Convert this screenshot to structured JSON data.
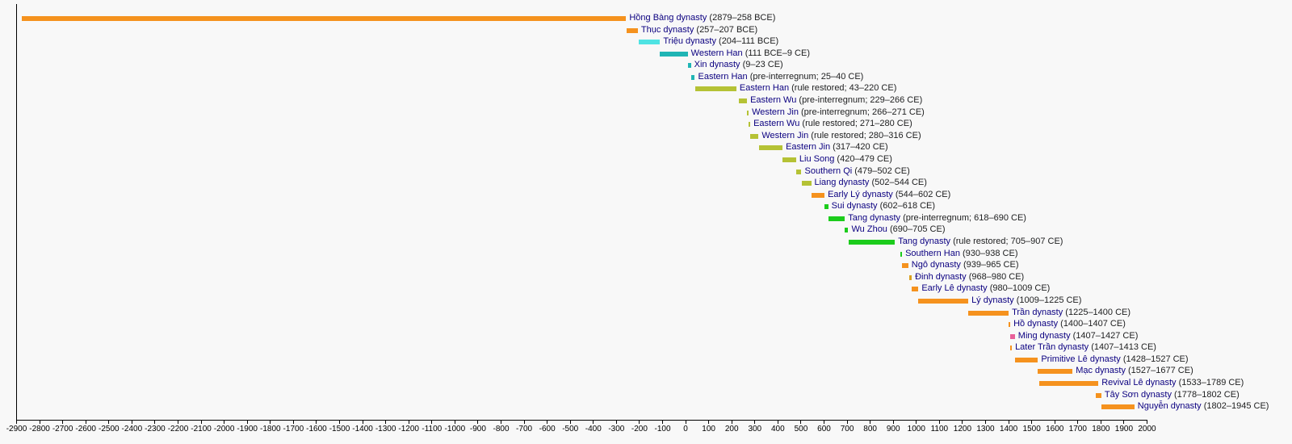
{
  "chart_data": {
    "type": "timeline",
    "xlim": [
      -2900,
      2000
    ],
    "x_tick_step": 100,
    "grid": false,
    "colors": {
      "vietnamese": "#f5921e",
      "trieu": "#4fe3e3",
      "han_xin": "#1fb5b5",
      "southern_chinese": "#b5c235",
      "sui_tang": "#1ccc1c",
      "ming": "#e8609a",
      "dinh": "#d9a020"
    },
    "dynasties": [
      {
        "name": "Hồng Bàng dynasty",
        "detail": "(2879–258 BCE)",
        "start": -2879,
        "end": -258,
        "color": "vietnamese"
      },
      {
        "name": "Thục dynasty",
        "detail": "(257–207 BCE)",
        "start": -257,
        "end": -207,
        "color": "vietnamese"
      },
      {
        "name": "Triệu dynasty",
        "detail": "(204–111 BCE)",
        "start": -204,
        "end": -111,
        "color": "trieu"
      },
      {
        "name": "Western Han",
        "detail": "(111 BCE–9 CE)",
        "start": -111,
        "end": 9,
        "color": "han_xin"
      },
      {
        "name": "Xin dynasty",
        "detail": "(9–23 CE)",
        "start": 9,
        "end": 23,
        "color": "han_xin"
      },
      {
        "name": "Eastern Han",
        "detail": "(pre-interregnum; 25–40 CE)",
        "start": 25,
        "end": 40,
        "color": "han_xin"
      },
      {
        "name": "Eastern Han",
        "detail": "(rule restored; 43–220 CE)",
        "start": 43,
        "end": 220,
        "color": "southern_chinese"
      },
      {
        "name": "Eastern Wu",
        "detail": "(pre-interregnum; 229–266 CE)",
        "start": 229,
        "end": 266,
        "color": "southern_chinese"
      },
      {
        "name": "Western Jin",
        "detail": "(pre-interregnum; 266–271 CE)",
        "start": 266,
        "end": 271,
        "color": "southern_chinese"
      },
      {
        "name": "Eastern Wu",
        "detail": "(rule restored; 271–280 CE)",
        "start": 271,
        "end": 280,
        "color": "southern_chinese"
      },
      {
        "name": "Western Jin",
        "detail": "(rule restored; 280–316 CE)",
        "start": 280,
        "end": 316,
        "color": "southern_chinese"
      },
      {
        "name": "Eastern Jin",
        "detail": "(317–420 CE)",
        "start": 317,
        "end": 420,
        "color": "southern_chinese"
      },
      {
        "name": "Liu Song",
        "detail": "(420–479 CE)",
        "start": 420,
        "end": 479,
        "color": "southern_chinese"
      },
      {
        "name": "Southern Qi",
        "detail": "(479–502 CE)",
        "start": 479,
        "end": 502,
        "color": "southern_chinese"
      },
      {
        "name": "Liang dynasty",
        "detail": "(502–544 CE)",
        "start": 502,
        "end": 544,
        "color": "southern_chinese"
      },
      {
        "name": "Early Lý dynasty",
        "detail": "(544–602 CE)",
        "start": 544,
        "end": 602,
        "color": "vietnamese"
      },
      {
        "name": "Sui dynasty",
        "detail": "(602–618 CE)",
        "start": 602,
        "end": 618,
        "color": "sui_tang"
      },
      {
        "name": "Tang dynasty",
        "detail": "(pre-interregnum; 618–690 CE)",
        "start": 618,
        "end": 690,
        "color": "sui_tang"
      },
      {
        "name": "Wu Zhou",
        "detail": "(690–705 CE)",
        "start": 690,
        "end": 705,
        "color": "sui_tang"
      },
      {
        "name": "Tang dynasty",
        "detail": "(rule restored; 705–907 CE)",
        "start": 705,
        "end": 907,
        "color": "sui_tang"
      },
      {
        "name": "Southern Han",
        "detail": "(930–938 CE)",
        "start": 930,
        "end": 938,
        "color": "sui_tang"
      },
      {
        "name": "Ngô dynasty",
        "detail": "(939–965 CE)",
        "start": 939,
        "end": 965,
        "color": "vietnamese"
      },
      {
        "name": "Đinh dynasty",
        "detail": "(968–980 CE)",
        "start": 968,
        "end": 980,
        "color": "dinh"
      },
      {
        "name": "Early Lê dynasty",
        "detail": "(980–1009 CE)",
        "start": 980,
        "end": 1009,
        "color": "vietnamese"
      },
      {
        "name": "Lý dynasty",
        "detail": "(1009–1225 CE)",
        "start": 1009,
        "end": 1225,
        "color": "vietnamese"
      },
      {
        "name": "Trần dynasty",
        "detail": "(1225–1400 CE)",
        "start": 1225,
        "end": 1400,
        "color": "vietnamese"
      },
      {
        "name": "Hồ dynasty",
        "detail": "(1400–1407 CE)",
        "start": 1400,
        "end": 1407,
        "color": "vietnamese"
      },
      {
        "name": "Ming dynasty",
        "detail": "(1407–1427 CE)",
        "start": 1407,
        "end": 1427,
        "color": "ming"
      },
      {
        "name": "Later Trần dynasty",
        "detail": "(1407–1413 CE)",
        "start": 1407,
        "end": 1413,
        "color": "vietnamese"
      },
      {
        "name": "Primitive Lê dynasty",
        "detail": "(1428–1527 CE)",
        "start": 1428,
        "end": 1527,
        "color": "vietnamese"
      },
      {
        "name": "Mạc dynasty",
        "detail": "(1527–1677 CE)",
        "start": 1527,
        "end": 1677,
        "color": "vietnamese"
      },
      {
        "name": "Revival Lê dynasty",
        "detail": "(1533–1789 CE)",
        "start": 1533,
        "end": 1789,
        "color": "vietnamese"
      },
      {
        "name": "Tây Sơn dynasty",
        "detail": "(1778–1802 CE)",
        "start": 1778,
        "end": 1802,
        "color": "vietnamese"
      },
      {
        "name": "Nguyễn dynasty",
        "detail": "(1802–1945 CE)",
        "start": 1802,
        "end": 1945,
        "color": "vietnamese"
      }
    ]
  }
}
